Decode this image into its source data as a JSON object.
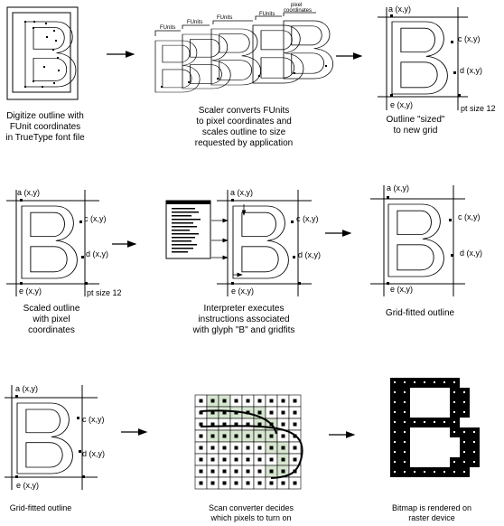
{
  "captions": {
    "step1": [
      "Digitize outline with",
      "FUnit coordinates",
      "in TrueType font file"
    ],
    "step2": [
      "Scaler converts FUnits",
      "to pixel coordinates and",
      "scales outline to size",
      "requested by application"
    ],
    "step3": [
      "Outline \"sized\"",
      "to new grid"
    ],
    "step4": [
      "Scaled outline",
      "with pixel",
      "coordinates"
    ],
    "step5": [
      "Interpreter executes",
      "instructions associated",
      "with glyph \"B\" and gridfits"
    ],
    "step6": [
      "Grid-fitted outline"
    ],
    "step7": [
      "Grid-fitted outline"
    ],
    "step8": [
      "Scan converter decides",
      "which pixels to turn on"
    ],
    "step9": [
      "Bitmap is rendered on",
      "raster device"
    ]
  },
  "labels": {
    "a": "a (x,y)",
    "c": "c (x,y)",
    "d": "d (x,y)",
    "e": "e (x,y)",
    "pt": "pt size 12",
    "funits": "FUnits",
    "pixel1": "pixel",
    "pixel2": "coordinates"
  },
  "colors": {
    "ink": "#000000",
    "grid_fill": "#d7e6d0",
    "paper": "#ffffff"
  }
}
